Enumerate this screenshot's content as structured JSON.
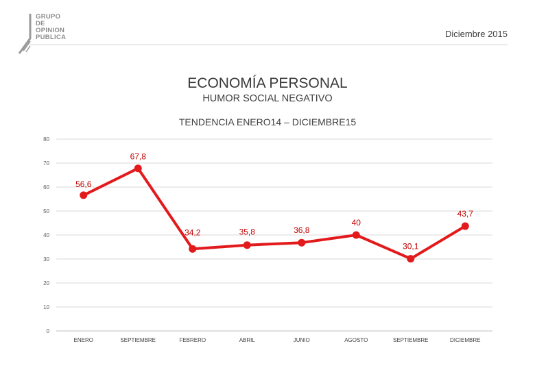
{
  "header": {
    "logo_text": "GRUPO\nDE\nOPINION\nPUBLICA",
    "date": "Diciembre 2015"
  },
  "titles": {
    "title": "ECONOMÍA PERSONAL",
    "subtitle": "HUMOR SOCIAL NEGATIVO",
    "period": "TENDENCIA ENERO14 – DICIEMBRE15"
  },
  "colors": {
    "series": "#e31a1c",
    "label": "#c00000",
    "grid": "#d9d9d9"
  },
  "chart_data": {
    "type": "line",
    "title": "ECONOMÍA PERSONAL",
    "subtitle": "HUMOR SOCIAL NEGATIVO",
    "categories": [
      "ENERO",
      "SEPTIEMBRE",
      "FEBRERO",
      "ABRIL",
      "JUNIO",
      "AGOSTO",
      "SEPTIEMBRE",
      "DICIEMBRE"
    ],
    "series": [
      {
        "values": [
          56.6,
          67.8,
          34.2,
          35.8,
          36.8,
          40,
          30.1,
          43.7
        ],
        "labels": [
          "56,6",
          "67,8",
          "34,2",
          "35,8",
          "36,8",
          "40",
          "30,1",
          "43,7"
        ]
      }
    ],
    "ylim": [
      0,
      80
    ],
    "yticks": [
      0,
      10,
      20,
      30,
      40,
      50,
      60,
      70,
      80
    ],
    "grid": true,
    "legend": "none"
  }
}
